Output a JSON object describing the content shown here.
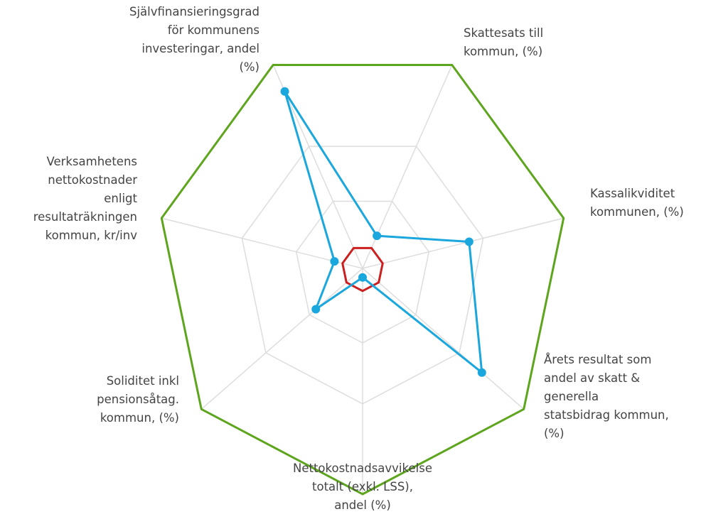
{
  "chart_data": {
    "type": "radar",
    "categories": [
      "Skattesats till\nkommun, (%)",
      "Kassalikviditet\nkommunen, (%)",
      "Årets resultat som\nandel av skatt &\ngenerella\nstatsbidrag kommun,\n(%)",
      "Nettokostnadsavvikelse\ntotalt (exkl. LSS),\nandel (%)",
      "Soliditet inkl\npensionsåtag.\nkommun, (%)",
      "Verksamhetens\nnettokostnader\nenligt\nresultaträkningen\nkommun, kr/inv",
      "Självfinansieringsgrad\nför kommunens\ninvesteringar, andel\n(%)"
    ],
    "series": [
      {
        "color": "#5ea51e",
        "values": [
          100,
          100,
          100,
          100,
          100,
          100,
          100
        ],
        "markers": false
      },
      {
        "color": "#cc1f1f",
        "values": [
          10,
          10,
          10,
          10,
          10,
          10,
          10
        ],
        "markers": false
      },
      {
        "color": "#1aa7dd",
        "values": [
          16,
          53,
          74,
          4,
          29,
          14,
          87
        ],
        "markers": true
      }
    ],
    "rlim": [
      0,
      100
    ],
    "rticks": [
      33,
      60
    ],
    "grid": true
  }
}
